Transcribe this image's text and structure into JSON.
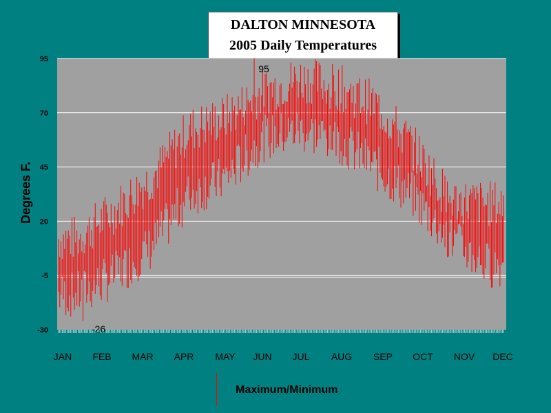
{
  "chart_data": {
    "type": "bar",
    "title": [
      "DALTON MINNESOTA",
      "2005 Daily Temperatures"
    ],
    "ylabel": "Degrees F.",
    "ylim": [
      -30,
      95
    ],
    "yticks": [
      95,
      70,
      45,
      20,
      -5,
      -30
    ],
    "months": [
      "JAN",
      "FEB",
      "MAR",
      "APR",
      "MAY",
      "JUN",
      "JUL",
      "AUG",
      "SEP",
      "OCT",
      "NOV",
      "DEC"
    ],
    "legend": "Maximum/Minimum",
    "annotations": [
      {
        "text": "95",
        "month": 5,
        "value": 95
      },
      {
        "text": "-26",
        "month": 1,
        "value": -26
      }
    ],
    "series_color": "#ff0000",
    "plot_background": "#a0a0a0",
    "grid": true,
    "monthly_profile": {
      "high": [
        12,
        25,
        40,
        62,
        68,
        80,
        86,
        82,
        74,
        55,
        30,
        28
      ],
      "low": [
        -14,
        -5,
        8,
        32,
        40,
        58,
        62,
        58,
        45,
        32,
        12,
        0
      ]
    },
    "record_high": 95,
    "record_low": -26
  },
  "colors": {
    "background": "#008080",
    "series": "#ff0000",
    "plot": "#a0a0a0"
  }
}
